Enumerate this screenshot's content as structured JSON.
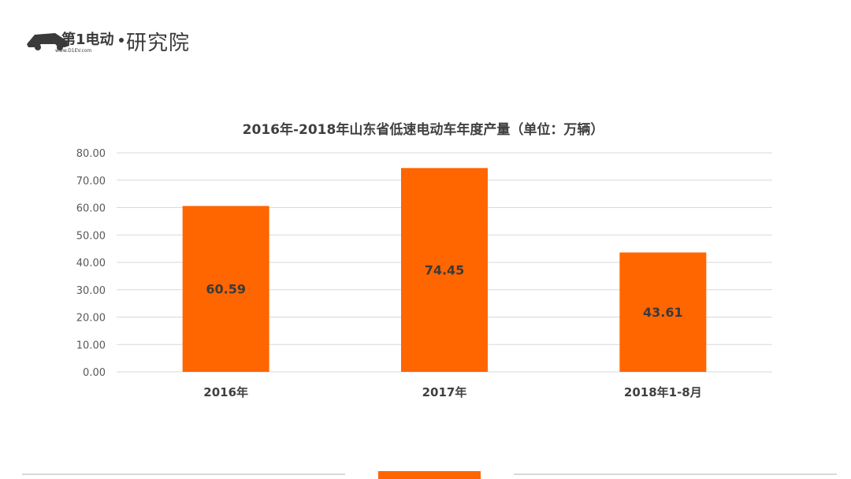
{
  "logo": {
    "brand_text": "研究院",
    "tagline": "www.D1EV.com",
    "mark_text": "第1电动"
  },
  "colors": {
    "bar": "#ff6600",
    "grid": "#d9d9d9",
    "text": "#404040"
  },
  "chart_data": {
    "type": "bar",
    "title": "2016年-2018年山东省低速电动车年度产量（单位：万辆）",
    "categories": [
      "2016年",
      "2017年",
      "2018年1-8月"
    ],
    "values": [
      60.59,
      74.45,
      43.61
    ],
    "data_labels": [
      "60.59",
      "74.45",
      "43.61"
    ],
    "ylim": [
      0,
      80
    ],
    "yticks": [
      "0.00",
      "10.00",
      "20.00",
      "30.00",
      "40.00",
      "50.00",
      "60.00",
      "70.00",
      "80.00"
    ],
    "xlabel": "",
    "ylabel": "",
    "grid": true,
    "legend": "none"
  }
}
